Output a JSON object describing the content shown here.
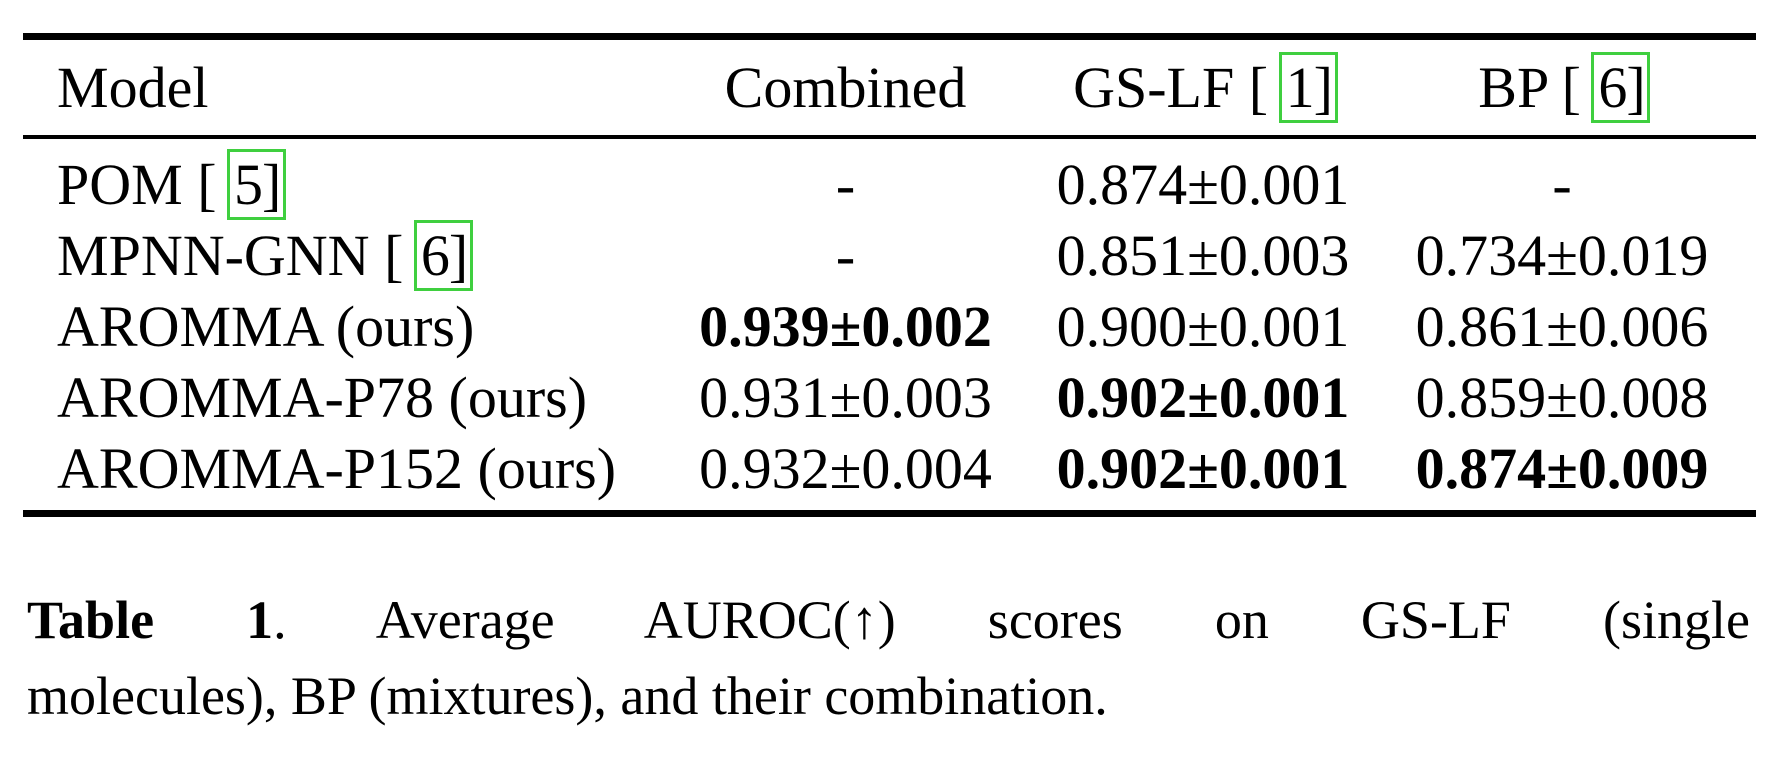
{
  "table": {
    "header": {
      "model": "Model",
      "combined": "Combined",
      "gslf": "GS-LF",
      "gslf_cite": "1",
      "bp": "BP",
      "bp_cite": "6"
    },
    "rows": [
      {
        "model": "POM",
        "cite": "5",
        "combined": "-",
        "gslf": "0.874±0.001",
        "bp": "-",
        "bold_columns": []
      },
      {
        "model": "MPNN-GNN",
        "cite": "6",
        "combined": "-",
        "gslf": "0.851±0.003",
        "bp": "0.734±0.019",
        "bold_columns": []
      },
      {
        "model": "AROMMA (ours)",
        "cite": null,
        "combined": "0.939±0.002",
        "gslf": "0.900±0.001",
        "bp": "0.861±0.006",
        "bold_columns": [
          "combined"
        ]
      },
      {
        "model": "AROMMA-P78 (ours)",
        "cite": null,
        "combined": "0.931±0.003",
        "gslf": "0.902±0.001",
        "bp": "0.859±0.008",
        "bold_columns": [
          "gslf"
        ]
      },
      {
        "model": "AROMMA-P152 (ours)",
        "cite": null,
        "combined": "0.932±0.004",
        "gslf": "0.902±0.001",
        "bp": "0.874±0.009",
        "bold_columns": [
          "gslf",
          "bp"
        ]
      }
    ]
  },
  "caption": {
    "label": "Table 1",
    "line1_rest": ". Average AUROC(↑) scores on GS-LF (single",
    "line2": "molecules), BP (mixtures), and their combination."
  },
  "colors": {
    "citation_border_green": "#3fcf3f",
    "text": "#000000",
    "background": "#ffffff"
  }
}
